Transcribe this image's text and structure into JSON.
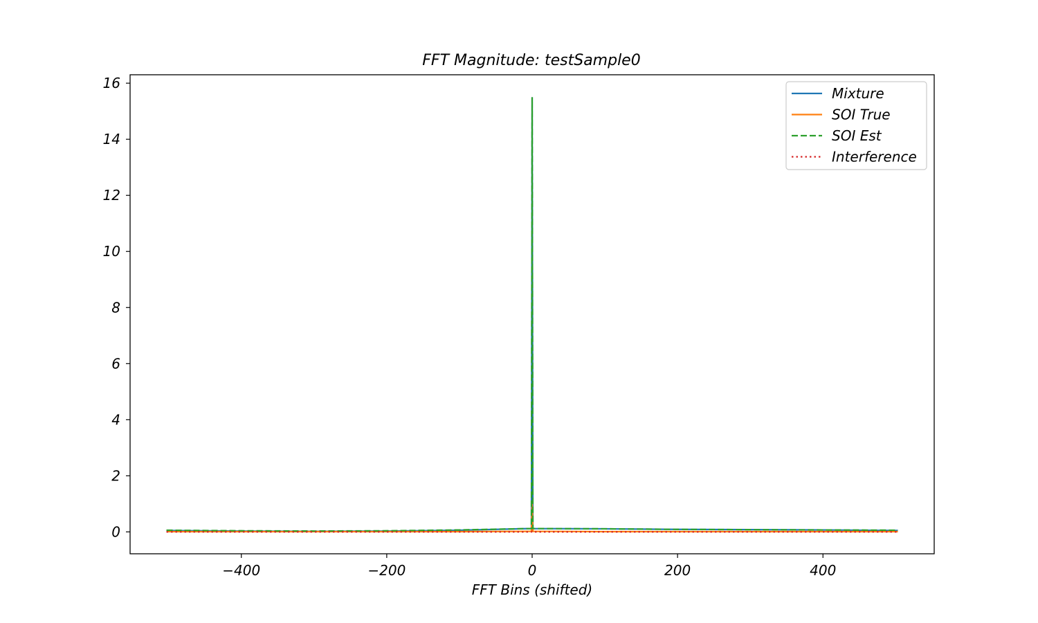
{
  "chart_data": {
    "type": "line",
    "title": "FFT Magnitude: testSample0",
    "xlabel": "FFT Bins (shifted)",
    "ylabel": "",
    "xlim": [
      -553,
      553
    ],
    "ylim": [
      -0.78,
      16.3
    ],
    "xticks": [
      -400,
      -200,
      0,
      200,
      400
    ],
    "xtick_labels": [
      "−400",
      "−200",
      "0",
      "200",
      "400"
    ],
    "yticks": [
      0,
      2,
      4,
      6,
      8,
      10,
      12,
      14,
      16
    ],
    "ytick_labels": [
      "0",
      "2",
      "4",
      "6",
      "8",
      "10",
      "12",
      "14",
      "16"
    ],
    "grid": false,
    "legend_position": "upper right",
    "series": [
      {
        "name": "Mixture",
        "color": "#1f77b4",
        "style": "solid",
        "x": [
          -503,
          -400,
          -300,
          -200,
          -100,
          -1,
          0,
          1,
          100,
          200,
          300,
          400,
          503
        ],
        "y": [
          0.05,
          0.03,
          0.02,
          0.03,
          0.06,
          0.12,
          15.5,
          0.12,
          0.11,
          0.09,
          0.08,
          0.07,
          0.05
        ]
      },
      {
        "name": "SOI True",
        "color": "#ff7f0e",
        "style": "solid",
        "x": [
          -503,
          -400,
          -300,
          -200,
          -100,
          -1,
          0,
          1,
          100,
          200,
          300,
          400,
          503
        ],
        "y": [
          0.01,
          0.01,
          0.01,
          0.01,
          0.01,
          0.02,
          1.0,
          0.02,
          0.01,
          0.01,
          0.01,
          0.01,
          0.01
        ]
      },
      {
        "name": "SOI Est",
        "color": "#2ca02c",
        "style": "dashed",
        "x": [
          -503,
          -400,
          -300,
          -200,
          -100,
          -1,
          0,
          1,
          100,
          200,
          300,
          400,
          503
        ],
        "y": [
          0.06,
          0.04,
          0.03,
          0.04,
          0.07,
          0.12,
          15.5,
          0.12,
          0.11,
          0.09,
          0.08,
          0.07,
          0.06
        ]
      },
      {
        "name": "Interference",
        "color": "#d62728",
        "style": "dotted",
        "x": [
          -503,
          -400,
          -300,
          -200,
          -100,
          -1,
          0,
          1,
          100,
          200,
          300,
          400,
          503
        ],
        "y": [
          0.0,
          0.0,
          0.0,
          0.0,
          0.0,
          0.0,
          0.02,
          0.0,
          0.0,
          0.0,
          0.0,
          0.0,
          0.0
        ]
      }
    ]
  }
}
